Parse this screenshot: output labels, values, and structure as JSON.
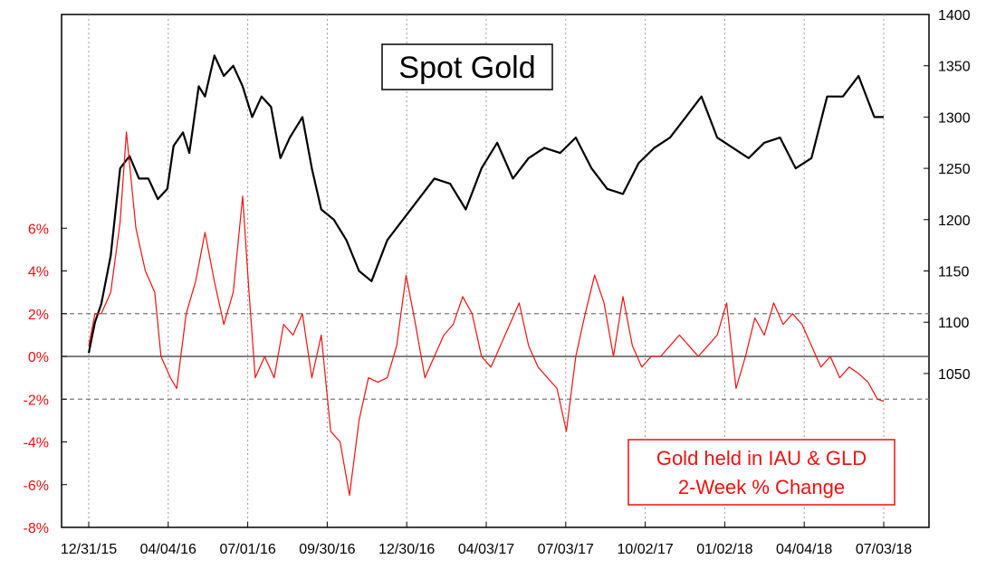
{
  "chart_data": {
    "type": "line",
    "title": "Spot Gold",
    "x_tick_labels": [
      "12/31/15",
      "04/04/16",
      "07/01/16",
      "09/30/16",
      "12/30/16",
      "04/03/17",
      "07/03/17",
      "10/02/17",
      "01/02/18",
      "04/04/18",
      "07/03/18"
    ],
    "right_axis": {
      "ylim": [
        900,
        1400
      ],
      "tick_values": [
        1050,
        1100,
        1150,
        1200,
        1250,
        1300,
        1350,
        1400
      ],
      "tick_labels": [
        "1050",
        "1100",
        "1150",
        "1200",
        "1250",
        "1300",
        "1350",
        "1400"
      ]
    },
    "left_axis": {
      "ylim": [
        -8,
        16
      ],
      "tick_values": [
        -8,
        -6,
        -4,
        -2,
        0,
        2,
        4,
        6
      ],
      "tick_labels": [
        "-8%",
        "-6%",
        "-4%",
        "-2%",
        "0%",
        "2%",
        "4%",
        "6%"
      ]
    },
    "reference_lines": [
      2,
      0,
      -2
    ],
    "legend_lines": [
      "Gold held in IAU & GLD",
      "2-Week % Change"
    ],
    "colors": {
      "gold": "#000000",
      "etf": "#ee1111",
      "grid": "#9a9a9a",
      "ref": "#777777"
    },
    "series": [
      {
        "axis": "right",
        "x": [
          0,
          0.2,
          0.4,
          0.7,
          1.0,
          1.3,
          1.6,
          1.9,
          2.2,
          2.5,
          2.7,
          3.0,
          3.2,
          3.5,
          3.7,
          4.0,
          4.3,
          4.6,
          4.9,
          5.2,
          5.5,
          5.8,
          6.1,
          6.4,
          6.8,
          7.1,
          7.4,
          7.8,
          8.2,
          8.6,
          9.0,
          9.5,
          10.0
        ],
        "y": [
          1070,
          1100,
          1118,
          1165,
          1250,
          1262,
          1240,
          1240,
          1220,
          1230,
          1272,
          1285,
          1265,
          1330,
          1320,
          1360,
          1340,
          1350,
          1330,
          1300,
          1320,
          1310,
          1260,
          1280,
          1300,
          1250,
          1210,
          1200,
          1180,
          1150,
          1140,
          1180,
          1200
        ],
        "x2": [
          10.5,
          11.0,
          11.5,
          12.0,
          12.5,
          13.0,
          13.5,
          14.0,
          14.5,
          15.0,
          15.5,
          16.0,
          16.5,
          17.0,
          17.5,
          18.0,
          18.5,
          19.0,
          19.5,
          20.0,
          20.5,
          21.0,
          21.5,
          22.0,
          22.5,
          23.0,
          23.5,
          24.0,
          24.5,
          25.0,
          25.3
        ],
        "y2": [
          1220,
          1240,
          1235,
          1210,
          1250,
          1275,
          1240,
          1260,
          1270,
          1265,
          1280,
          1250,
          1230,
          1225,
          1255,
          1270,
          1280,
          1300,
          1320,
          1280,
          1270,
          1260,
          1275,
          1280,
          1250,
          1260,
          1320,
          1320,
          1340,
          1300,
          1300
        ]
      },
      {
        "axis": "left",
        "x": [
          0,
          0.2,
          0.4,
          0.7,
          1.0,
          1.2,
          1.5,
          1.8,
          2.1,
          2.3,
          2.6,
          2.8,
          3.1,
          3.4,
          3.7,
          4.0,
          4.3,
          4.6,
          4.9,
          5.1,
          5.3,
          5.6,
          5.9,
          6.2,
          6.5,
          6.8,
          7.1,
          7.4,
          7.7,
          8.0,
          8.3,
          8.6,
          8.9,
          9.2,
          9.5,
          9.8,
          10.1,
          10.4,
          10.7,
          11.0,
          11.3,
          11.6,
          11.9,
          12.2,
          12.5,
          12.8,
          13.1,
          13.4,
          13.7,
          14.0,
          14.3,
          14.6,
          14.9,
          15.2,
          15.5,
          15.8,
          16.1,
          16.4,
          16.7,
          17.0,
          17.3,
          17.6,
          17.9,
          18.2,
          18.5,
          18.8,
          19.1,
          19.4,
          19.7,
          20.0,
          20.3,
          20.6,
          20.9,
          21.2,
          21.5,
          21.8,
          22.1,
          22.4,
          22.7,
          23.0,
          23.3,
          23.6,
          23.9,
          24.2,
          24.5,
          24.8,
          25.1,
          25.3
        ],
        "y": [
          0.5,
          2.0,
          2.0,
          3.0,
          6.3,
          10.5,
          6.0,
          4.0,
          3.0,
          0.0,
          -1.0,
          -1.5,
          2.0,
          3.5,
          5.8,
          3.5,
          1.5,
          3.0,
          7.5,
          3.0,
          -1.0,
          0.0,
          -1.0,
          1.5,
          1.0,
          2.0,
          -1.0,
          1.0,
          -3.5,
          -4.0,
          -6.5,
          -3.0,
          -1.0,
          -1.2,
          -1.0,
          0.5,
          3.8,
          1.5,
          -1.0,
          0.0,
          1.0,
          1.5,
          2.8,
          2.0,
          0.0,
          -0.5,
          0.5,
          1.5,
          2.5,
          0.5,
          -0.5,
          -1.0,
          -1.5,
          -3.5,
          0.0,
          2.0,
          3.8,
          2.5,
          0.0,
          2.8,
          0.5,
          -0.5,
          0.0,
          0.0,
          0.5,
          1.0,
          0.5,
          0.0,
          0.5,
          1.0,
          2.5,
          -1.5,
          0.0,
          1.8,
          1.0,
          2.5,
          1.5,
          2.0,
          1.5,
          0.5,
          -0.5,
          0.0,
          -1.0,
          -0.5,
          -0.8,
          -1.2,
          -2.0,
          -2.1
        ]
      }
    ]
  }
}
